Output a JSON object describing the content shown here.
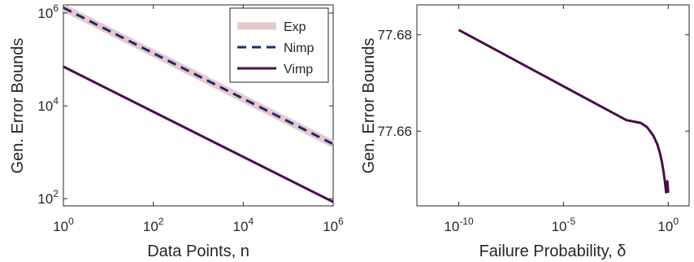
{
  "chart_data": [
    {
      "type": "line",
      "xscale": "log",
      "yscale": "log",
      "xlabel": "Data Points, n",
      "ylabel": "Gen. Error Bounds",
      "xlim": [
        1,
        1000000
      ],
      "ylim": [
        70,
        1500000
      ],
      "xticks": [
        1,
        100,
        10000,
        1000000
      ],
      "yticks": [
        100,
        10000,
        1000000
      ],
      "xtick_labels": [
        {
          "base": "10",
          "exp": "0"
        },
        {
          "base": "10",
          "exp": "2"
        },
        {
          "base": "10",
          "exp": "4"
        },
        {
          "base": "10",
          "exp": "6"
        }
      ],
      "ytick_labels": [
        {
          "base": "10",
          "exp": "2"
        },
        {
          "base": "10",
          "exp": "4"
        },
        {
          "base": "10",
          "exp": "6"
        }
      ],
      "grid": false,
      "legend": "top-right",
      "series": [
        {
          "name": "Exp",
          "color": "#e8c8cc",
          "style": "solid-thick",
          "x": [
            1,
            1000000
          ],
          "y": [
            1300000,
            1500
          ]
        },
        {
          "name": "Nimp",
          "color": "#1a2d6b",
          "style": "dashed",
          "x": [
            1,
            1000000
          ],
          "y": [
            1300000,
            1500
          ]
        },
        {
          "name": "Vimp",
          "color": "#4a0d4a",
          "style": "solid",
          "x": [
            1,
            1000000
          ],
          "y": [
            70000,
            85
          ]
        }
      ]
    },
    {
      "type": "line",
      "xscale": "log",
      "yscale": "linear",
      "xlabel": "Failure Probability, δ",
      "ylabel": "Gen. Error Bounds",
      "xlim": [
        1e-12,
        10
      ],
      "ylim": [
        77.6445,
        77.6862
      ],
      "xticks": [
        1e-10,
        1e-05,
        1
      ],
      "yticks": [
        77.66,
        77.68
      ],
      "xtick_labels": [
        {
          "base": "10",
          "exp": "-10"
        },
        {
          "base": "10",
          "exp": "-5"
        },
        {
          "base": "10",
          "exp": "0"
        }
      ],
      "ytick_labels": [
        "77.66",
        "77.68"
      ],
      "grid": false,
      "series": [
        {
          "name": "",
          "color": "#4a0d4a",
          "style": "solid",
          "x": [
            1e-10,
            0.01,
            0.05,
            0.1,
            0.2,
            0.3,
            0.4,
            0.5,
            0.6,
            0.7,
            0.8,
            0.9,
            0.95,
            0.99
          ],
          "y": [
            77.681,
            77.6623,
            77.6617,
            77.6608,
            77.659,
            77.6573,
            77.6555,
            77.6536,
            77.6516,
            77.6495,
            77.6473,
            77.6496,
            77.6487,
            77.6472
          ]
        }
      ]
    }
  ]
}
